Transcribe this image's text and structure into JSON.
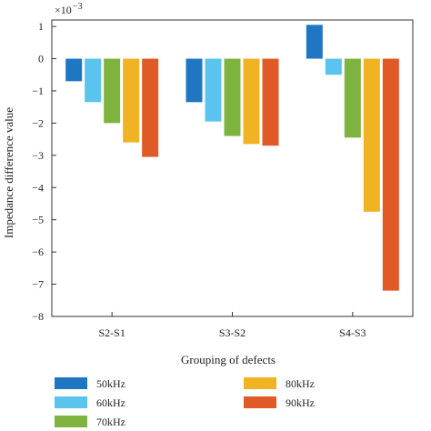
{
  "chart_data": {
    "type": "bar",
    "categories": [
      "S2-S1",
      "S3-S2",
      "S4-S3"
    ],
    "series": [
      {
        "name": "50kHz",
        "color": "#1f77c4",
        "values": [
          -0.7,
          -1.35,
          1.05
        ]
      },
      {
        "name": "60kHz",
        "color": "#5bc4ee",
        "values": [
          -1.35,
          -1.95,
          -0.5
        ]
      },
      {
        "name": "70kHz",
        "color": "#7fb33f",
        "values": [
          -2.0,
          -2.4,
          -2.45
        ]
      },
      {
        "name": "80kHz",
        "color": "#f0b323",
        "values": [
          -2.6,
          -2.65,
          -4.75
        ]
      },
      {
        "name": "90kHz",
        "color": "#e05a28",
        "values": [
          -3.05,
          -2.7,
          -7.2
        ]
      }
    ],
    "xlabel": "Grouping of defects",
    "ylabel": "Impedance difference value",
    "yscale_label": "×10",
    "yscale_exponent": "−3",
    "ylim": [
      -8,
      1.2
    ],
    "yticks": [
      1,
      0,
      -1,
      -2,
      -3,
      -4,
      -5,
      -6,
      -7,
      -8
    ],
    "ytick_labels": [
      "1",
      "0",
      "−1",
      "−2",
      "−3",
      "−4",
      "−5",
      "−6",
      "−7",
      "−8"
    ],
    "grid": false,
    "legend_position": "bottom"
  }
}
